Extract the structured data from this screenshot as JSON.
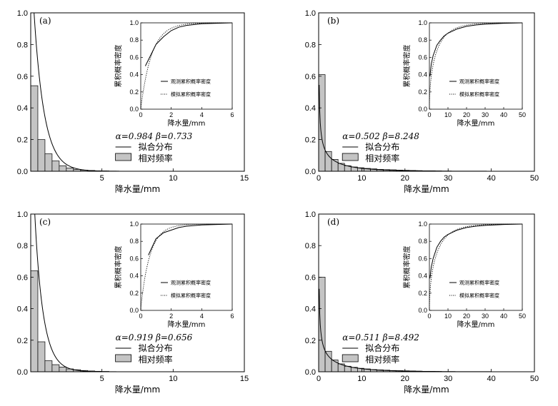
{
  "chart_data": [
    {
      "panel": "(a)",
      "type": "bar",
      "xlabel": "降水量/mm",
      "ylabel": "",
      "xlim": [
        0,
        15
      ],
      "ylim": [
        0,
        1.0
      ],
      "xticks": [
        5,
        10,
        15
      ],
      "yticks": [
        0.0,
        0.2,
        0.4,
        0.6,
        0.8,
        1.0
      ],
      "bin_width": 0.5,
      "bar_values": [
        0.54,
        0.2,
        0.11,
        0.065,
        0.035,
        0.02,
        0.012,
        0.007,
        0.005,
        0.003,
        0.002,
        0.001
      ],
      "fit": {
        "alpha": 0.984,
        "beta": 0.733
      },
      "param_text": {
        "alpha": "α=0.984",
        "beta": "β=0.733"
      },
      "legend": [
        "拟合分布",
        "相对频率"
      ],
      "inset": {
        "xlabel": "降水量/mm",
        "ylabel": "累积概率密度",
        "xlim": [
          0,
          6
        ],
        "ylim": [
          0,
          1.0
        ],
        "xticks": [
          0,
          2,
          4,
          6
        ],
        "yticks": [
          0.0,
          0.2,
          0.4,
          0.6,
          0.8,
          1.0
        ],
        "legend": [
          "观测累积概率密度",
          "模拟累积概率密度"
        ],
        "observed": {
          "x": [
            0.3,
            0.5,
            1,
            1.5,
            2,
            2.5,
            3,
            4,
            5,
            6
          ],
          "y": [
            0.5,
            0.57,
            0.75,
            0.84,
            0.91,
            0.95,
            0.97,
            0.99,
            0.995,
            1.0
          ]
        }
      }
    },
    {
      "panel": "(b)",
      "type": "bar",
      "xlabel": "降水量/mm",
      "ylabel": "",
      "xlim": [
        0,
        50
      ],
      "ylim": [
        0,
        1.0
      ],
      "xticks": [
        0,
        10,
        20,
        30,
        40,
        50
      ],
      "yticks": [
        0.0,
        0.2,
        0.4,
        0.6,
        0.8,
        1.0
      ],
      "bin_width": 1.5,
      "bar_values": [
        0.61,
        0.125,
        0.075,
        0.05,
        0.035,
        0.027,
        0.022,
        0.018,
        0.015,
        0.012,
        0.01,
        0.009,
        0.007,
        0.006,
        0.005,
        0.004,
        0.003,
        0.003,
        0.002
      ],
      "fit": {
        "alpha": 0.502,
        "beta": 8.248
      },
      "param_text": {
        "alpha": "α=0.502",
        "beta": "β=8.248"
      },
      "legend": [
        "拟合分布",
        "相对频率"
      ],
      "inset": {
        "xlabel": "降水量/mm",
        "ylabel": "累积概率密度",
        "xlim": [
          0,
          50
        ],
        "ylim": [
          0,
          1.0
        ],
        "xticks": [
          0,
          10,
          20,
          30,
          40,
          50
        ],
        "yticks": [
          0.0,
          0.2,
          0.4,
          0.6,
          0.8,
          1.0
        ],
        "legend": [
          "观测累积概率密度",
          "模拟累积概率密度"
        ],
        "observed": {
          "x": [
            0.3,
            1,
            2,
            4,
            6,
            8,
            10,
            15,
            20,
            25,
            30,
            40,
            50
          ],
          "y": [
            0.38,
            0.52,
            0.62,
            0.74,
            0.8,
            0.85,
            0.88,
            0.93,
            0.96,
            0.975,
            0.985,
            0.995,
            1.0
          ]
        }
      }
    },
    {
      "panel": "(c)",
      "type": "bar",
      "xlabel": "降水量/mm",
      "ylabel": "",
      "xlim": [
        0,
        15
      ],
      "ylim": [
        0,
        1.0
      ],
      "xticks": [
        5,
        10,
        15
      ],
      "yticks": [
        0.0,
        0.2,
        0.4,
        0.6,
        0.8,
        1.0
      ],
      "bin_width": 0.5,
      "bar_values": [
        0.64,
        0.19,
        0.07,
        0.045,
        0.03,
        0.018,
        0.013,
        0.008,
        0.005,
        0.003,
        0.002,
        0.001
      ],
      "fit": {
        "alpha": 0.919,
        "beta": 0.656
      },
      "param_text": {
        "alpha": "α=0.919",
        "beta": "β=0.656"
      },
      "legend": [
        "拟合分布",
        "相对频率"
      ],
      "inset": {
        "xlabel": "降水量/mm",
        "ylabel": "累积概率密度",
        "xlim": [
          0,
          6
        ],
        "ylim": [
          0,
          1.0
        ],
        "xticks": [
          0,
          2,
          4,
          6
        ],
        "yticks": [
          0.0,
          0.2,
          0.4,
          0.6,
          0.8,
          1.0
        ],
        "legend": [
          "观测累积概率密度",
          "模拟累积概率密度"
        ],
        "observed": {
          "x": [
            0.5,
            1,
            1.5,
            2,
            2.5,
            3,
            4,
            5,
            6
          ],
          "y": [
            0.64,
            0.83,
            0.9,
            0.93,
            0.96,
            0.975,
            0.99,
            0.995,
            1.0
          ]
        }
      }
    },
    {
      "panel": "(d)",
      "type": "bar",
      "xlabel": "降水量/mm",
      "ylabel": "",
      "xlim": [
        0,
        50
      ],
      "ylim": [
        0,
        1.0
      ],
      "xticks": [
        0,
        10,
        20,
        30,
        40,
        50
      ],
      "yticks": [
        0.0,
        0.2,
        0.4,
        0.6,
        0.8,
        1.0
      ],
      "bin_width": 1.5,
      "bar_values": [
        0.6,
        0.13,
        0.075,
        0.05,
        0.035,
        0.028,
        0.022,
        0.018,
        0.014,
        0.012,
        0.01,
        0.008,
        0.007,
        0.006,
        0.005,
        0.004,
        0.003,
        0.003,
        0.002
      ],
      "fit": {
        "alpha": 0.511,
        "beta": 8.492
      },
      "param_text": {
        "alpha": "α=0.511",
        "beta": "β=8.492"
      },
      "legend": [
        "拟合分布",
        "相对频率"
      ],
      "inset": {
        "xlabel": "降水量/mm",
        "ylabel": "累积概率密度",
        "xlim": [
          0,
          50
        ],
        "ylim": [
          0,
          1.0
        ],
        "xticks": [
          0,
          10,
          20,
          30,
          40,
          50
        ],
        "yticks": [
          0.0,
          0.2,
          0.4,
          0.6,
          0.8,
          1.0
        ],
        "legend": [
          "观测累积概率密度",
          "模拟累积概率密度"
        ],
        "observed": {
          "x": [
            0.3,
            1,
            2,
            4,
            6,
            8,
            10,
            15,
            20,
            25,
            30,
            40,
            50
          ],
          "y": [
            0.37,
            0.5,
            0.6,
            0.73,
            0.8,
            0.85,
            0.88,
            0.93,
            0.96,
            0.975,
            0.985,
            0.995,
            1.0
          ]
        }
      }
    }
  ]
}
